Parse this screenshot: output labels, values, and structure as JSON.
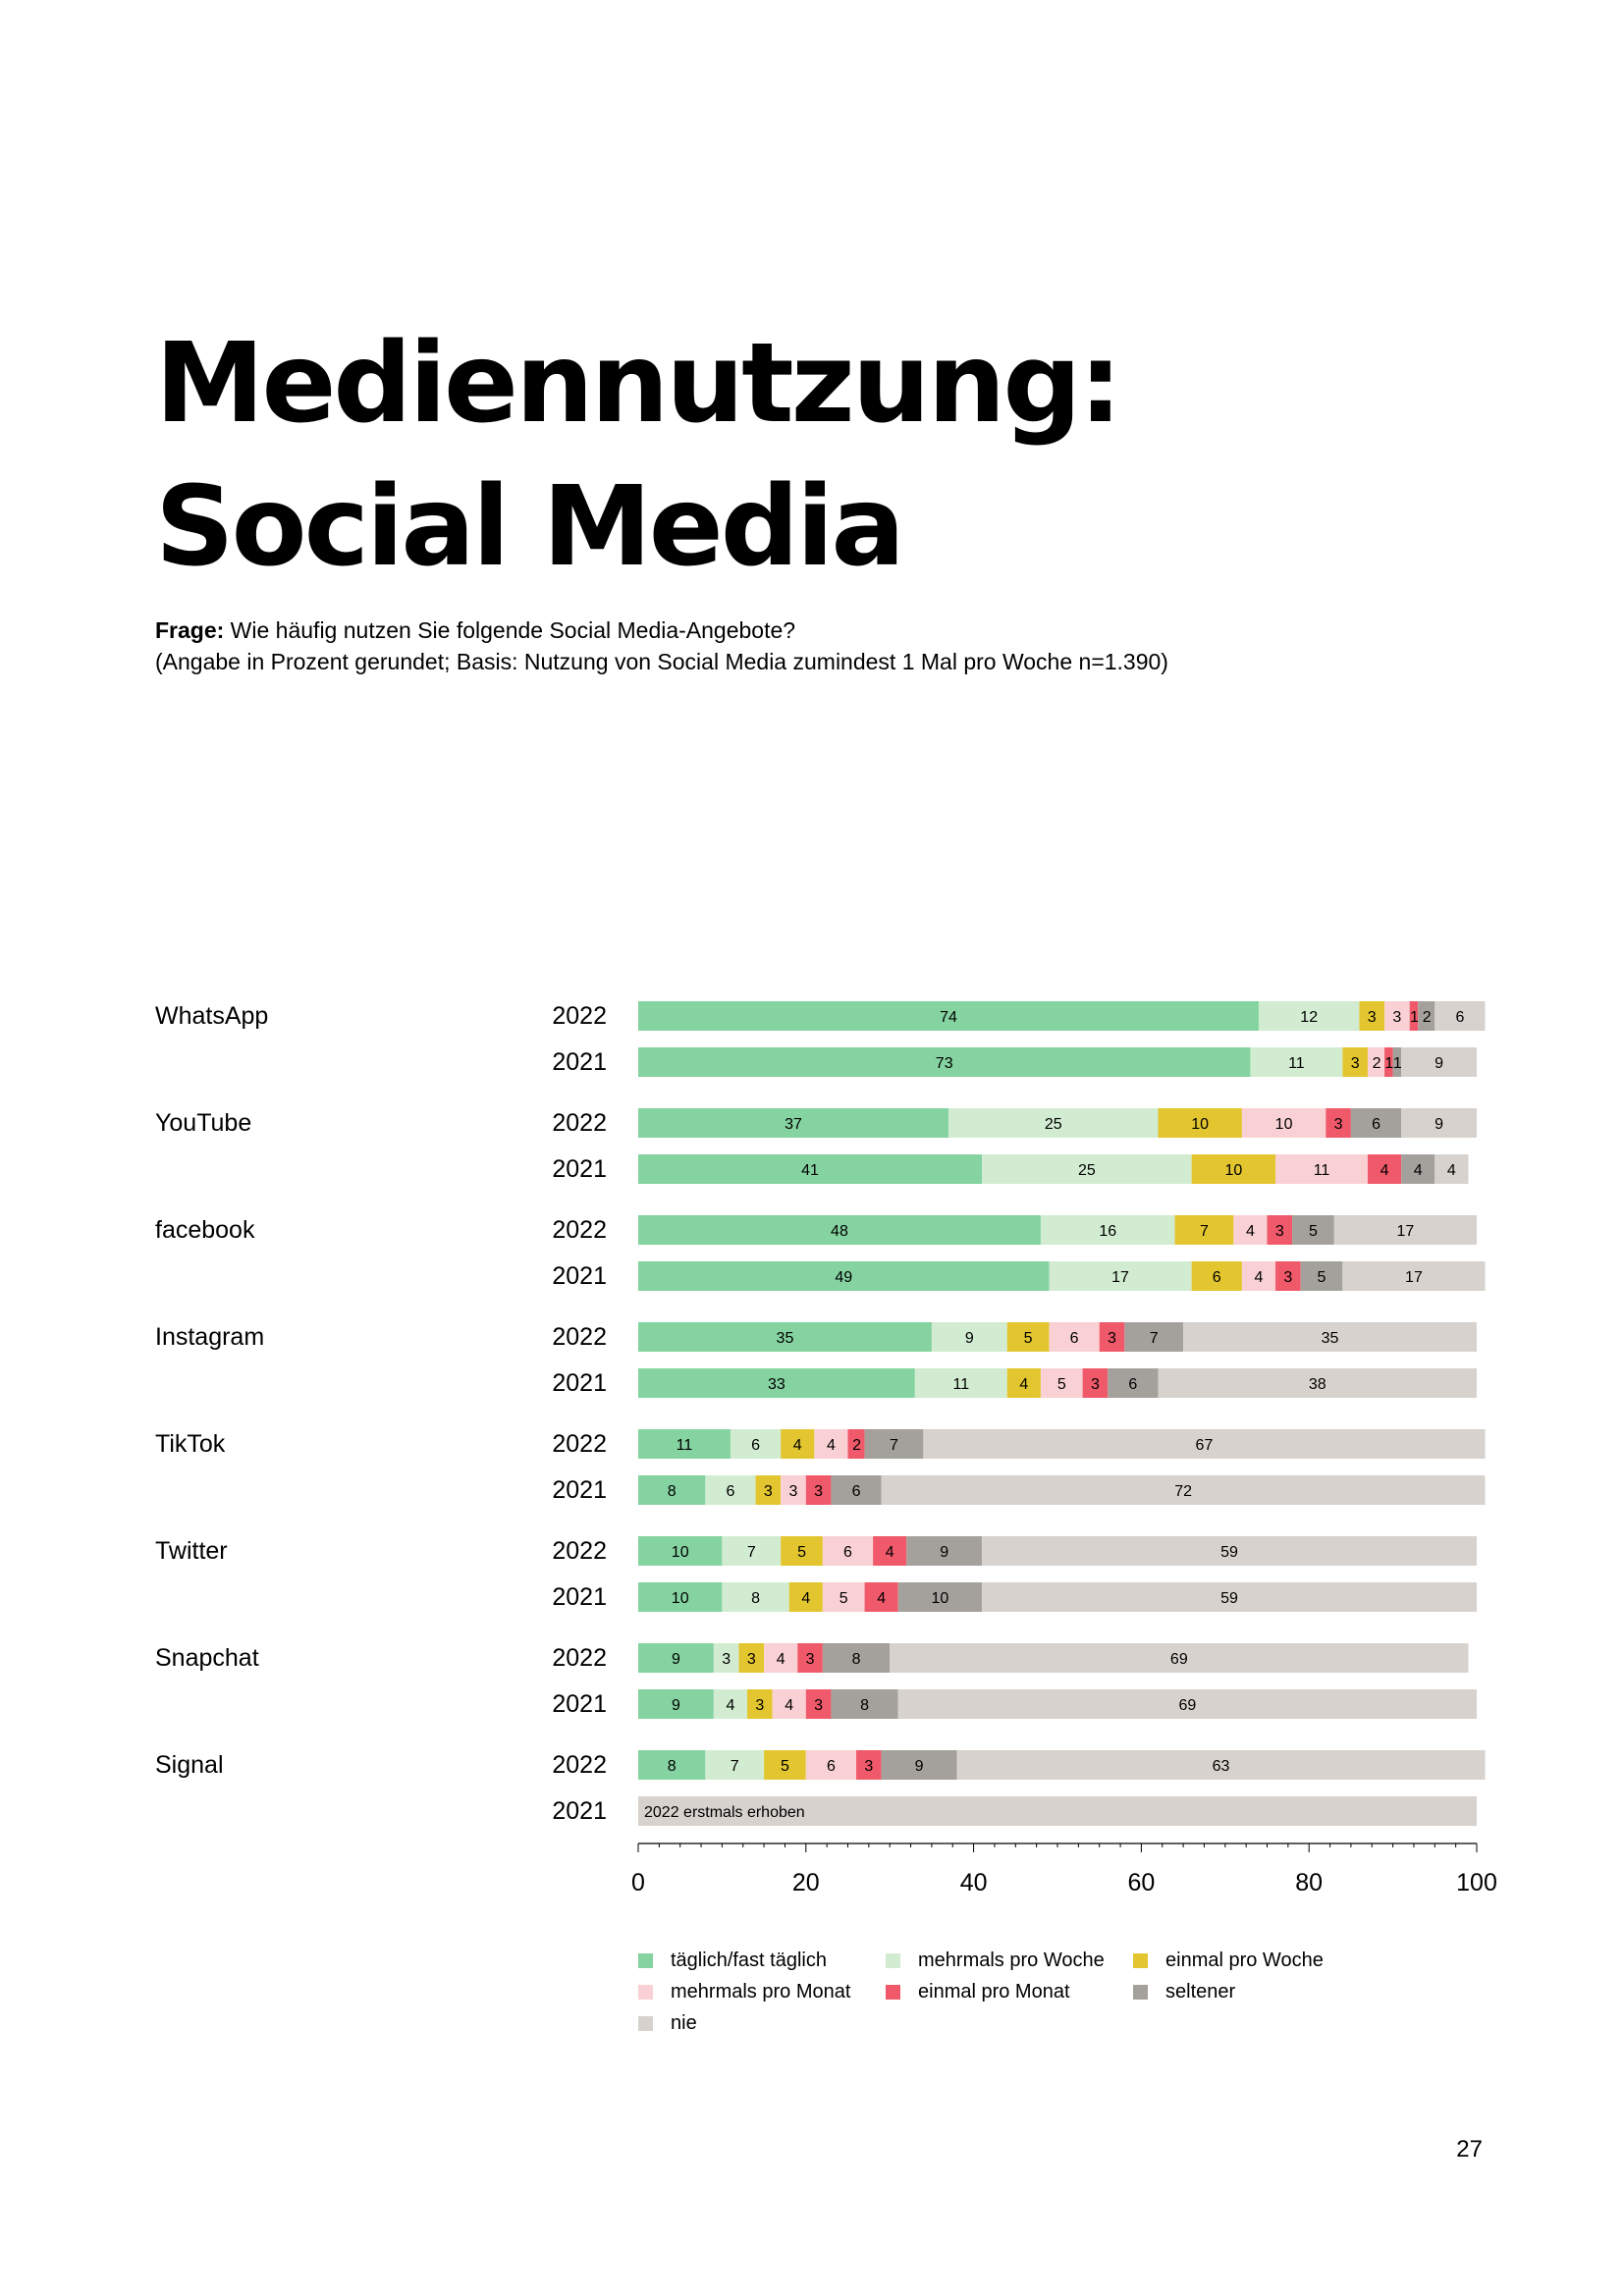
{
  "page": {
    "title_line1": "Mediennutzung:",
    "title_line2": "Social Media",
    "question_label": "Frage:",
    "question_text": " Wie häufig nutzen Sie folgende Social Media-Angebote?",
    "question_note": "(Angabe in Prozent gerundet; Basis: Nutzung von Social Media zumindest 1 Mal pro Woche n=1.390)",
    "page_number": "27"
  },
  "chart_data": {
    "type": "bar",
    "orientation": "horizontal",
    "stacked": true,
    "xlim": [
      0,
      100
    ],
    "xticks": [
      0,
      20,
      40,
      60,
      80,
      100
    ],
    "legend_position": "bottom",
    "categories": [
      "täglich/fast täglich",
      "mehrmals pro Woche",
      "einmal pro Woche",
      "mehrmals pro Monat",
      "einmal pro Monat",
      "seltener",
      "nie"
    ],
    "colors": [
      "#84d3a0",
      "#d2ecd2",
      "#e3c62f",
      "#f9d1d4",
      "#f0596a",
      "#a4a19c",
      "#d7d2cd"
    ],
    "groups": [
      {
        "name": "WhatsApp",
        "rows": [
          {
            "year": "2022",
            "values": [
              74,
              12,
              3,
              3,
              1,
              2,
              6
            ]
          },
          {
            "year": "2021",
            "values": [
              73,
              11,
              3,
              2,
              1,
              1,
              9
            ]
          }
        ]
      },
      {
        "name": "YouTube",
        "rows": [
          {
            "year": "2022",
            "values": [
              37,
              25,
              10,
              10,
              3,
              6,
              9
            ]
          },
          {
            "year": "2021",
            "values": [
              41,
              25,
              10,
              11,
              4,
              4,
              4
            ]
          }
        ]
      },
      {
        "name": "facebook",
        "rows": [
          {
            "year": "2022",
            "values": [
              48,
              16,
              7,
              4,
              3,
              5,
              17
            ]
          },
          {
            "year": "2021",
            "values": [
              49,
              17,
              6,
              4,
              3,
              5,
              17
            ]
          }
        ]
      },
      {
        "name": "Instagram",
        "rows": [
          {
            "year": "2022",
            "values": [
              35,
              9,
              5,
              6,
              3,
              7,
              35
            ]
          },
          {
            "year": "2021",
            "values": [
              33,
              11,
              4,
              5,
              3,
              6,
              38
            ]
          }
        ]
      },
      {
        "name": "TikTok",
        "rows": [
          {
            "year": "2022",
            "values": [
              11,
              6,
              4,
              4,
              2,
              7,
              67
            ]
          },
          {
            "year": "2021",
            "values": [
              8,
              6,
              3,
              3,
              3,
              6,
              72
            ]
          }
        ]
      },
      {
        "name": "Twitter",
        "rows": [
          {
            "year": "2022",
            "values": [
              10,
              7,
              5,
              6,
              4,
              9,
              59
            ]
          },
          {
            "year": "2021",
            "values": [
              10,
              8,
              4,
              5,
              4,
              10,
              59
            ]
          }
        ]
      },
      {
        "name": "Snapchat",
        "rows": [
          {
            "year": "2022",
            "values": [
              9,
              3,
              3,
              4,
              3,
              8,
              69
            ]
          },
          {
            "year": "2021",
            "values": [
              9,
              4,
              3,
              4,
              3,
              8,
              69
            ]
          }
        ]
      },
      {
        "name": "Signal",
        "rows": [
          {
            "year": "2022",
            "values": [
              8,
              7,
              5,
              6,
              3,
              9,
              63
            ]
          },
          {
            "year": "2021",
            "values": null,
            "note": "2022 erstmals erhoben"
          }
        ]
      }
    ]
  }
}
